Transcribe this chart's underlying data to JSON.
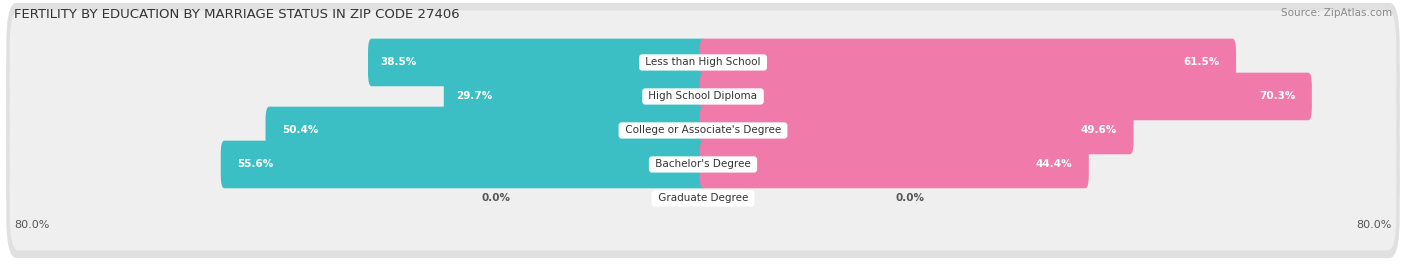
{
  "title": "FERTILITY BY EDUCATION BY MARRIAGE STATUS IN ZIP CODE 27406",
  "source": "Source: ZipAtlas.com",
  "categories": [
    "Less than High School",
    "High School Diploma",
    "College or Associate's Degree",
    "Bachelor's Degree",
    "Graduate Degree"
  ],
  "married": [
    38.5,
    29.7,
    50.4,
    55.6,
    0.0
  ],
  "unmarried": [
    61.5,
    70.3,
    49.6,
    44.4,
    0.0
  ],
  "married_color": "#3BBFC4",
  "unmarried_color": "#F07BAA",
  "married_color_light": "#93D8DC",
  "unmarried_color_light": "#F5AECB",
  "row_bg_color": "#EFEFEF",
  "row_bg_shadow": "#E0E0E0",
  "x_left_label": "80.0%",
  "x_right_label": "80.0%",
  "axis_max": 80.0,
  "title_fontsize": 9.5,
  "source_fontsize": 7.5,
  "label_fontsize": 8,
  "bar_label_fontsize": 7.5,
  "category_fontsize": 7.5,
  "legend_fontsize": 8,
  "background_color": "#FFFFFF"
}
